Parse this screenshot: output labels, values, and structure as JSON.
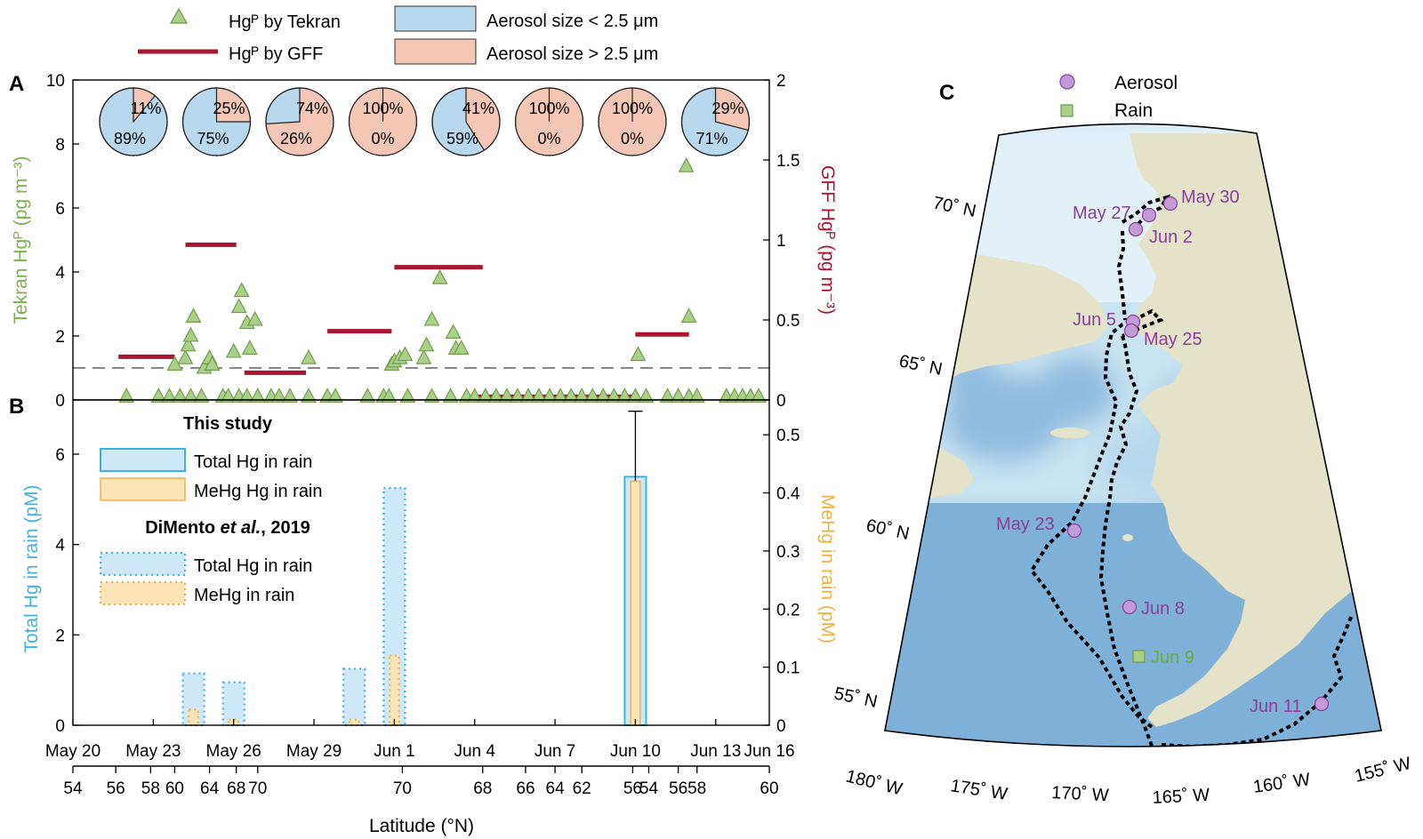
{
  "legend_top": {
    "tekran": "Hgᴾ by Tekran",
    "gff": "Hgᴾ by GFF",
    "fine": "Aerosol size < 2.5 μm",
    "coarse": "Aerosol size > 2.5 μm"
  },
  "panel_labels": {
    "a": "A",
    "b": "B",
    "c": "C"
  },
  "colors": {
    "tekran_fill": "#a9cf88",
    "tekran_stroke": "#6c9a45",
    "tekran_label": "#7ab24e",
    "gff": "#a8162f",
    "fine": "#b8d8ee",
    "coarse": "#f3c6b5",
    "total_hg_fill": "#cfe8f7",
    "total_hg_stroke": "#3eb3e0",
    "mehg_fill": "#fbe3b5",
    "mehg_stroke": "#eab34a",
    "rain_axis": "#3eb3e0",
    "mehg_axis": "#eab34a",
    "map_ocean_deep": "#7fb1d8",
    "map_ocean_shallow": "#dff0f7",
    "map_land": "#e4e2c8",
    "aerosol_marker": "#c39ad8",
    "rain_marker": "#a9cf88",
    "aerosol_label": "#8b3f9c",
    "rain_label": "#6eaa3a"
  },
  "chart_data": [
    {
      "id": "A",
      "type": "scatter",
      "ylabel": "Tekran Hgᴾ (pg m⁻³)",
      "ylabel_right": "GFF Hgᴾ (pg m⁻³)",
      "ylim": [
        0,
        10
      ],
      "ylim_right": [
        0,
        2
      ],
      "yticks": [
        "0",
        "2",
        "4",
        "6",
        "8",
        "10"
      ],
      "yticks_right": [
        "0",
        "0.5",
        "1",
        "1.5",
        "2"
      ],
      "dashed_line_y": 1.0,
      "series": [
        {
          "name": "Hgᴾ by Tekran",
          "points": [
            [
              22,
              0.1
            ],
            [
              23.2,
              0.1
            ],
            [
              23.6,
              0.1
            ],
            [
              24.0,
              0.1
            ],
            [
              24.4,
              0.1
            ],
            [
              24.8,
              0.1
            ],
            [
              25.6,
              0.1
            ],
            [
              25.8,
              0.1
            ],
            [
              26.2,
              0.1
            ],
            [
              26.5,
              0.1
            ],
            [
              26.9,
              0.1
            ],
            [
              27.4,
              0.1
            ],
            [
              27.7,
              0.1
            ],
            [
              28.1,
              0.1
            ],
            [
              28.8,
              0.1
            ],
            [
              29.5,
              0.1
            ],
            [
              29.8,
              0.1
            ],
            [
              31.0,
              0.1
            ],
            [
              31.6,
              0.1
            ],
            [
              31.8,
              0.1
            ],
            [
              32.5,
              0.1
            ],
            [
              33.4,
              0.1
            ],
            [
              34.1,
              0.1
            ],
            [
              34.7,
              0.1
            ],
            [
              35.0,
              0.1
            ],
            [
              35.4,
              0.1
            ],
            [
              35.8,
              0.1
            ],
            [
              36.2,
              0.1
            ],
            [
              36.6,
              0.1
            ],
            [
              37.0,
              0.1
            ],
            [
              37.4,
              0.1
            ],
            [
              37.8,
              0.1
            ],
            [
              38.2,
              0.1
            ],
            [
              38.6,
              0.1
            ],
            [
              39.0,
              0.1
            ],
            [
              39.4,
              0.1
            ],
            [
              39.8,
              0.1
            ],
            [
              40.2,
              0.1
            ],
            [
              40.6,
              0.1
            ],
            [
              41.0,
              0.1
            ],
            [
              41.4,
              0.1
            ],
            [
              42.2,
              0.1
            ],
            [
              42.6,
              0.1
            ],
            [
              43.0,
              0.1
            ],
            [
              43.3,
              0.1
            ],
            [
              44.4,
              0.1
            ],
            [
              44.7,
              0.1
            ],
            [
              45.0,
              0.1
            ],
            [
              45.3,
              0.1
            ],
            [
              45.6,
              0.1
            ],
            [
              23.8,
              1.1
            ],
            [
              24.2,
              1.3
            ],
            [
              24.3,
              1.7
            ],
            [
              24.4,
              2.0
            ],
            [
              24.5,
              2.6
            ],
            [
              24.9,
              1.0
            ],
            [
              25.1,
              1.3
            ],
            [
              25.2,
              1.1
            ],
            [
              26.2,
              2.9
            ],
            [
              26.3,
              3.4
            ],
            [
              26.5,
              2.4
            ],
            [
              26.6,
              1.6
            ],
            [
              26.8,
              2.5
            ],
            [
              26.0,
              1.5
            ],
            [
              28.8,
              1.3
            ],
            [
              31.9,
              1.1
            ],
            [
              32.0,
              1.2
            ],
            [
              32.2,
              1.3
            ],
            [
              32.4,
              1.4
            ],
            [
              33.1,
              1.3
            ],
            [
              33.2,
              1.7
            ],
            [
              33.4,
              2.5
            ],
            [
              33.7,
              3.8
            ],
            [
              34.2,
              2.1
            ],
            [
              34.3,
              1.6
            ],
            [
              34.5,
              1.6
            ],
            [
              41.1,
              1.4
            ],
            [
              42.9,
              7.3
            ],
            [
              43.0,
              2.6
            ]
          ]
        },
        {
          "name": "Hgᴾ by GFF",
          "segments": [
            [
              21.7,
              23.8,
              0.27
            ],
            [
              24.2,
              26.1,
              0.97
            ],
            [
              26.4,
              28.7,
              0.17
            ],
            [
              29.5,
              31.9,
              0.43
            ],
            [
              32.0,
              35.3,
              0.83
            ],
            [
              35.0,
              40.9,
              0.02
            ],
            [
              41.0,
              43.0,
              0.41
            ]
          ]
        }
      ],
      "pies": [
        {
          "fine_pct": "89%",
          "coarse_pct": "11%",
          "fine": 89,
          "coarse": 11
        },
        {
          "fine_pct": "75%",
          "coarse_pct": "25%",
          "fine": 75,
          "coarse": 25
        },
        {
          "fine_pct": "26%",
          "coarse_pct": "74%",
          "fine": 26,
          "coarse": 74
        },
        {
          "fine_pct": "0%",
          "coarse_pct": "100%",
          "fine": 0,
          "coarse": 100
        },
        {
          "fine_pct": "59%",
          "coarse_pct": "41%",
          "fine": 59,
          "coarse": 41
        },
        {
          "fine_pct": "0%",
          "coarse_pct": "100%",
          "fine": 0,
          "coarse": 100
        },
        {
          "fine_pct": "0%",
          "coarse_pct": "100%",
          "fine": 0,
          "coarse": 100
        },
        {
          "fine_pct": "71%",
          "coarse_pct": "29%",
          "fine": 71,
          "coarse": 29
        }
      ]
    },
    {
      "id": "B",
      "type": "bar",
      "ylabel": "Total Hg in rain (pM)",
      "ylabel_right": "MeHg in rain (pM)",
      "ylim": [
        0,
        7.2
      ],
      "ylim_right": [
        0,
        0.56
      ],
      "yticks": [
        "0",
        "2",
        "4",
        "6"
      ],
      "yticks_right": [
        "0",
        "0.1",
        "0.2",
        "0.3",
        "0.4",
        "0.5"
      ],
      "legend_this_study": "This study",
      "legend_dimento_prefix": "DiMento ",
      "legend_dimento_italic": "et al.",
      "legend_dimento_suffix": ", 2019",
      "legend_total": "Total Hg in rain",
      "legend_mehg_this": "MeHg Hg in rain",
      "legend_mehg_dimento": "MeHg in rain",
      "series": [
        {
          "name": "Total Hg in rain",
          "source": "This study",
          "bars": [
            [
              41.0,
              5.5,
              0.8
            ]
          ],
          "error": [
            [
              41.0,
              6.95
            ]
          ]
        },
        {
          "name": "MeHg Hg in rain",
          "source": "This study",
          "bars": [
            [
              41.0,
              0.42,
              0.35
            ]
          ]
        },
        {
          "name": "Total Hg in rain",
          "source": "DiMento et al., 2019",
          "bars": [
            [
              24.5,
              1.15,
              0.8
            ],
            [
              26.0,
              0.95,
              0.8
            ],
            [
              30.5,
              1.25,
              0.8
            ],
            [
              32.0,
              5.25,
              0.8
            ]
          ]
        },
        {
          "name": "MeHg in rain",
          "source": "DiMento et al., 2019",
          "bars": [
            [
              24.5,
              0.027,
              0.35
            ],
            [
              26.0,
              0.01,
              0.35
            ],
            [
              30.5,
              0.01,
              0.35
            ],
            [
              32.0,
              0.12,
              0.35
            ]
          ]
        }
      ],
      "xlim": [
        20,
        46
      ],
      "xticks": [
        {
          "v": 20,
          "label": "May 20"
        },
        {
          "v": 23,
          "label": "May 23"
        },
        {
          "v": 26,
          "label": "May 26"
        },
        {
          "v": 29,
          "label": "May 29"
        },
        {
          "v": 32,
          "label": "Jun 1"
        },
        {
          "v": 35,
          "label": "Jun 4"
        },
        {
          "v": 38,
          "label": "Jun 7"
        },
        {
          "v": 41,
          "label": "Jun 10"
        },
        {
          "v": 44,
          "label": "Jun 13"
        },
        {
          "v": 47,
          "label": "Jun 16"
        }
      ],
      "latitude_axis_label": "Latitude (°N)",
      "latitude_ticks": [
        {
          "v": 20,
          "label": "54"
        },
        {
          "v": 21.6,
          "label": "56"
        },
        {
          "v": 22.9,
          "label": "58"
        },
        {
          "v": 23.8,
          "label": "60"
        },
        {
          "v": 25.1,
          "label": "64"
        },
        {
          "v": 26.1,
          "label": "68"
        },
        {
          "v": 26.9,
          "label": "70"
        },
        {
          "v": 32.3,
          "label": "70"
        },
        {
          "v": 35.3,
          "label": "68"
        },
        {
          "v": 36.9,
          "label": "66"
        },
        {
          "v": 38.0,
          "label": "64"
        },
        {
          "v": 39.0,
          "label": "62"
        },
        {
          "v": 40.9,
          "label": "56"
        },
        {
          "v": 41.5,
          "label": "54"
        },
        {
          "v": 42.6,
          "label": "56"
        },
        {
          "v": 43.3,
          "label": "58"
        },
        {
          "v": 46.0,
          "label": "60"
        }
      ]
    }
  ],
  "map": {
    "legend_aerosol": "Aerosol",
    "legend_rain": "Rain",
    "lat_labels": [
      "70˚ N",
      "65˚ N",
      "60˚ N",
      "55˚ N"
    ],
    "lon_labels": [
      "180˚ W",
      "175˚ W",
      "170˚ W",
      "165˚ W",
      "160˚ W",
      "155˚ W"
    ],
    "sites": [
      {
        "label": "May 30",
        "kind": "aerosol"
      },
      {
        "label": "May 27",
        "kind": "aerosol"
      },
      {
        "label": "Jun 2",
        "kind": "aerosol"
      },
      {
        "label": "Jun 5",
        "kind": "aerosol"
      },
      {
        "label": "May 25",
        "kind": "aerosol"
      },
      {
        "label": "May 23",
        "kind": "aerosol"
      },
      {
        "label": "Jun 8",
        "kind": "aerosol"
      },
      {
        "label": "Jun 9",
        "kind": "rain"
      },
      {
        "label": "Jun 11",
        "kind": "aerosol"
      }
    ]
  }
}
